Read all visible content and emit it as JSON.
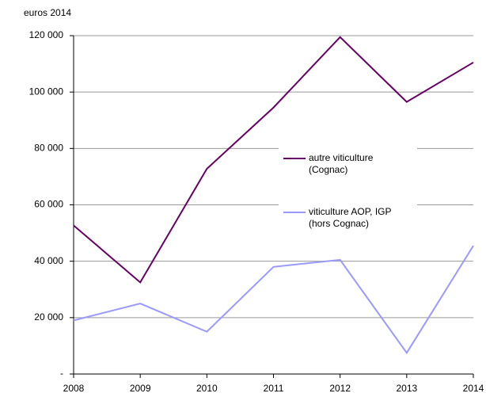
{
  "chart_data": {
    "type": "line",
    "y_axis_label": "euros 2014",
    "categories": [
      "2008",
      "2009",
      "2010",
      "2011",
      "2012",
      "2013",
      "2014"
    ],
    "series": [
      {
        "name": "autre viticulture (Cognac)",
        "color": "#660066",
        "values": [
          52700,
          32500,
          72800,
          94500,
          119500,
          96500,
          110500
        ]
      },
      {
        "name": "viticulture AOP, IGP (hors Cognac)",
        "color": "#9999ff",
        "values": [
          19000,
          25000,
          15000,
          38000,
          40500,
          7500,
          45500
        ]
      }
    ],
    "ylim": [
      0,
      120000
    ],
    "yticks": [
      {
        "value": 0,
        "label": "-"
      },
      {
        "value": 20000,
        "label": "20 000"
      },
      {
        "value": 40000,
        "label": "40 000"
      },
      {
        "value": 60000,
        "label": "60 000"
      },
      {
        "value": 80000,
        "label": "80 000"
      },
      {
        "value": 100000,
        "label": "100 000"
      },
      {
        "value": 120000,
        "label": "120 000"
      }
    ],
    "grid": true
  }
}
